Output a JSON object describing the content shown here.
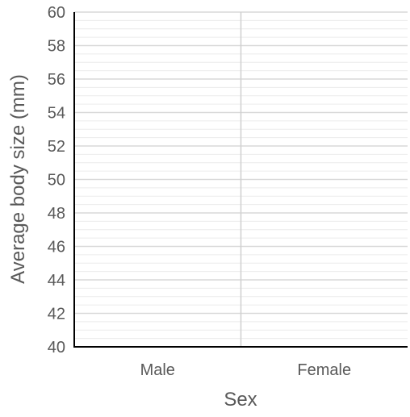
{
  "chart_data": {
    "type": "bar",
    "categories": [
      "Male",
      "Female"
    ],
    "series": [],
    "xlabel": "Sex",
    "ylabel": "Average body size (mm)",
    "ylim": [
      40,
      60
    ],
    "yticks": [
      40,
      42,
      44,
      46,
      48,
      50,
      52,
      54,
      56,
      58,
      60
    ],
    "ytick_labels": [
      "40",
      "42",
      "44",
      "46",
      "48",
      "50",
      "52",
      "54",
      "56",
      "58",
      "60"
    ],
    "minor_grid_step": 0.5,
    "grid": true,
    "colors": {
      "axis": "#000000",
      "major_grid": "#d9d9d9",
      "minor_grid": "#ececec",
      "category_divider": "#d0d0d0",
      "tick_text": "#595959"
    }
  }
}
